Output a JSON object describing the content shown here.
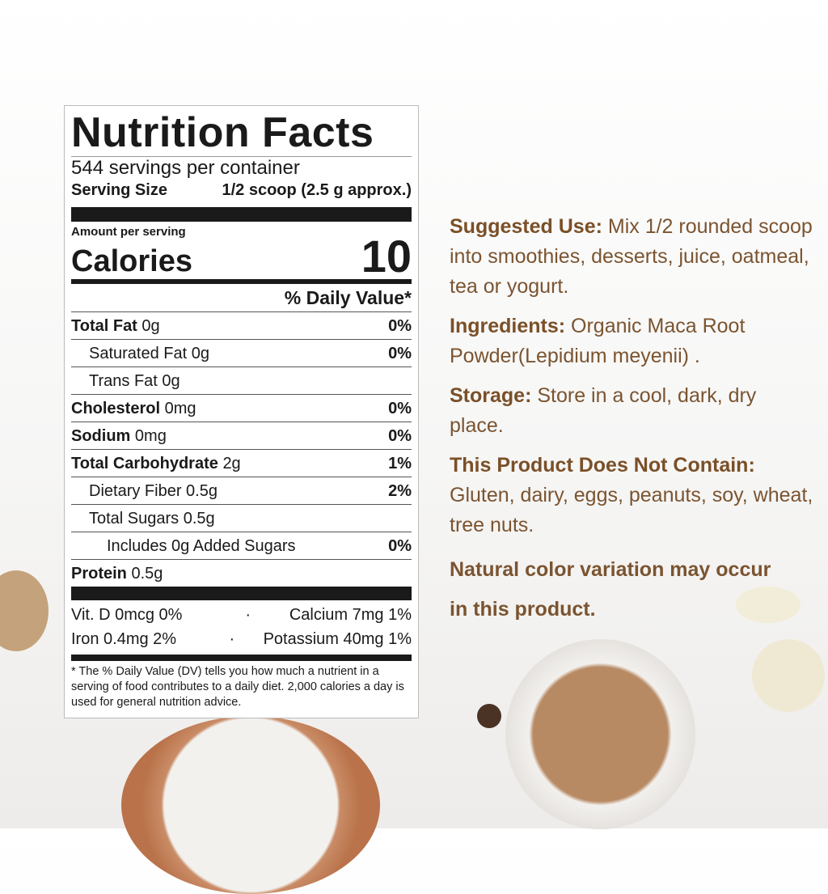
{
  "label": {
    "title": "Nutrition Facts",
    "servings": "544 servings per container",
    "serving_size_label": "Serving Size",
    "serving_size_value": "1/2 scoop (2.5 g approx.)",
    "amount_per_serving": "Amount per serving",
    "calories_label": "Calories",
    "calories_value": "10",
    "daily_value_header": "% Daily Value*",
    "rows": [
      {
        "name": "Total Fat",
        "amount": "0g",
        "dv": "0%"
      },
      {
        "name": "Saturated Fat",
        "amount": "0g",
        "dv": "0%"
      },
      {
        "name": "Trans Fat",
        "amount": "0g",
        "dv": ""
      },
      {
        "name": "Cholesterol",
        "amount": "0mg",
        "dv": "0%"
      },
      {
        "name": "Sodium",
        "amount": "0mg",
        "dv": "0%"
      },
      {
        "name": "Total Carbohydrate",
        "amount": "2g",
        "dv": "1%"
      },
      {
        "name": "Dietary Fiber",
        "amount": "0.5g",
        "dv": "2%"
      },
      {
        "name": "Total Sugars",
        "amount": "0.5g",
        "dv": ""
      },
      {
        "name": "Includes 0g Added Sugars",
        "amount": "",
        "dv": "0%"
      },
      {
        "name": "Protein",
        "amount": "0.5g",
        "dv": ""
      }
    ],
    "vitamins": [
      {
        "left": "Vit. D 0mcg 0%",
        "right": "Calcium 7mg 1%"
      },
      {
        "left": "Iron 0.4mg 2%",
        "right": "Potassium 40mg 1%"
      }
    ],
    "separator": "·",
    "footnote": "* The % Daily Value (DV) tells you how much a nutrient in a serving of food contributes to a daily diet. 2,000 calories a day is used for general nutrition advice."
  },
  "info": {
    "suggested_use_label": "Suggested Use:",
    "suggested_use_text": " Mix 1/2 rounded scoop into smoothies, desserts, juice, oatmeal,  tea or yogurt.",
    "ingredients_label": "Ingredients:",
    "ingredients_text": " Organic Maca Root Powder(Lepidium meyenii) .",
    "storage_label": "Storage:",
    "storage_text": " Store in a cool, dark, dry place.",
    "not_contain_label": "This Product Does Not Contain:",
    "not_contain_text": "Gluten, dairy, eggs, peanuts, soy, wheat, tree nuts.",
    "note": "Natural color variation may occur in this product."
  },
  "colors": {
    "accent_brown": "#7b5430",
    "label_black": "#1a1a1a"
  }
}
